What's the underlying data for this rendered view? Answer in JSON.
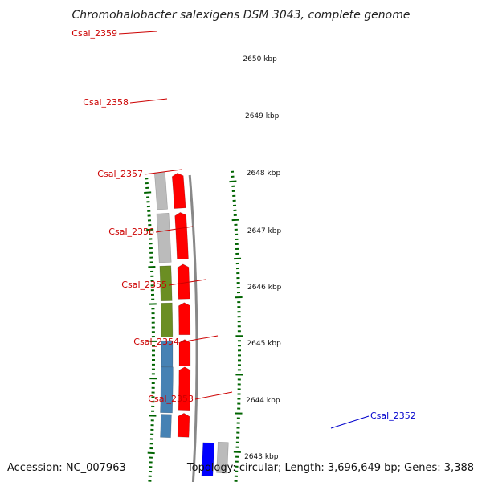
{
  "title": "Chromohalobacter salexigens DSM 3043, complete genome",
  "footer": {
    "accession": "Accession: NC_007963",
    "stats": "Topology: circular; Length: 3,696,649 bp; Genes: 3,388"
  },
  "ticks": [
    "2650 kbp",
    "2649 kbp",
    "2648 kbp",
    "2647 kbp",
    "2646 kbp",
    "2645 kbp",
    "2644 kbp",
    "2643 kbp"
  ],
  "gene_labels": [
    {
      "text": "Csal_2359",
      "color": "#cc0000"
    },
    {
      "text": "Csal_2358",
      "color": "#cc0000"
    },
    {
      "text": "Csal_2357",
      "color": "#cc0000"
    },
    {
      "text": "Csal_2356",
      "color": "#cc0000"
    },
    {
      "text": "Csal_2355",
      "color": "#cc0000"
    },
    {
      "text": "Csal_2354",
      "color": "#cc0000"
    },
    {
      "text": "Csal_2353",
      "color": "#cc0000"
    },
    {
      "text": "Csal_2352",
      "color": "#0000cc"
    }
  ],
  "colors": {
    "cds_red": "#ff0000",
    "gray": "#bbbbbb",
    "olive": "#6b8e23",
    "steel_blue": "#4682b4",
    "blue": "#0000ff",
    "backbone": "#888888",
    "tick_green": "#006400"
  }
}
